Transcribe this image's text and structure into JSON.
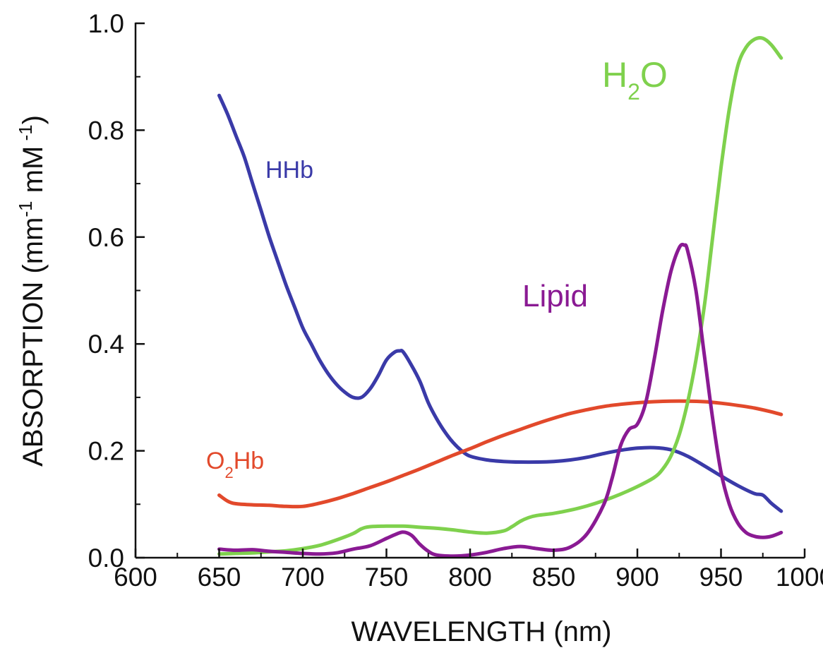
{
  "chart_data": {
    "type": "line",
    "xlabel": "WAVELENGTH (nm)",
    "ylabel": {
      "prefix": "ABSORPTION (mm",
      "sup1": "-1",
      "middle": " mM",
      "sup2": " -1",
      "suffix": ")"
    },
    "xlim": [
      600,
      1000
    ],
    "ylim": [
      0.0,
      1.0
    ],
    "xticks": [
      "600",
      "650",
      "700",
      "750",
      "800",
      "850",
      "900",
      "950",
      "1000"
    ],
    "yticks": [
      "0.0",
      "0.2",
      "0.4",
      "0.6",
      "0.8",
      "1.0"
    ],
    "grid": false,
    "series": [
      {
        "id": "hhb",
        "color": "#3a3aa8",
        "label": {
          "main": "HHb",
          "sub": "",
          "tail": ""
        },
        "x": [
          650,
          655,
          660,
          665,
          670,
          675,
          680,
          685,
          690,
          695,
          700,
          705,
          710,
          715,
          720,
          725,
          730,
          735,
          740,
          745,
          750,
          755,
          758,
          760,
          765,
          770,
          775,
          780,
          785,
          790,
          795,
          800,
          810,
          820,
          830,
          840,
          850,
          860,
          870,
          880,
          890,
          900,
          910,
          920,
          930,
          940,
          950,
          960,
          970,
          975,
          980,
          986
        ],
        "y": [
          0.865,
          0.83,
          0.79,
          0.75,
          0.7,
          0.65,
          0.6,
          0.555,
          0.51,
          0.47,
          0.43,
          0.4,
          0.37,
          0.345,
          0.325,
          0.31,
          0.3,
          0.3,
          0.315,
          0.34,
          0.37,
          0.385,
          0.387,
          0.385,
          0.36,
          0.33,
          0.29,
          0.26,
          0.235,
          0.215,
          0.2,
          0.19,
          0.183,
          0.18,
          0.179,
          0.179,
          0.18,
          0.183,
          0.188,
          0.195,
          0.201,
          0.205,
          0.206,
          0.202,
          0.19,
          0.172,
          0.153,
          0.135,
          0.12,
          0.117,
          0.102,
          0.087
        ]
      },
      {
        "id": "o2hb",
        "color": "#e2492b",
        "label": {
          "main": "O",
          "sub": "2",
          "tail": "Hb"
        },
        "x": [
          650,
          655,
          660,
          670,
          680,
          690,
          700,
          710,
          720,
          730,
          740,
          750,
          760,
          770,
          780,
          790,
          800,
          810,
          820,
          830,
          840,
          850,
          860,
          870,
          880,
          890,
          900,
          910,
          920,
          930,
          940,
          950,
          960,
          970,
          980,
          986
        ],
        "y": [
          0.117,
          0.106,
          0.101,
          0.099,
          0.098,
          0.096,
          0.096,
          0.102,
          0.11,
          0.12,
          0.131,
          0.142,
          0.154,
          0.166,
          0.179,
          0.192,
          0.204,
          0.217,
          0.229,
          0.24,
          0.251,
          0.261,
          0.27,
          0.277,
          0.283,
          0.287,
          0.29,
          0.292,
          0.293,
          0.293,
          0.292,
          0.289,
          0.285,
          0.28,
          0.273,
          0.268
        ]
      },
      {
        "id": "h2o",
        "color": "#7fd14d",
        "label": {
          "main": "H",
          "sub": "2",
          "tail": "O"
        },
        "x": [
          650,
          660,
          670,
          680,
          690,
          700,
          710,
          720,
          730,
          735,
          740,
          750,
          760,
          770,
          780,
          790,
          800,
          810,
          820,
          825,
          830,
          835,
          840,
          850,
          860,
          870,
          880,
          890,
          900,
          910,
          915,
          920,
          925,
          930,
          935,
          940,
          945,
          950,
          955,
          960,
          965,
          970,
          975,
          980,
          986
        ],
        "y": [
          0.007,
          0.008,
          0.009,
          0.011,
          0.013,
          0.017,
          0.023,
          0.033,
          0.045,
          0.054,
          0.058,
          0.059,
          0.059,
          0.057,
          0.055,
          0.052,
          0.048,
          0.046,
          0.05,
          0.058,
          0.068,
          0.075,
          0.079,
          0.083,
          0.089,
          0.097,
          0.107,
          0.119,
          0.133,
          0.15,
          0.165,
          0.19,
          0.23,
          0.29,
          0.37,
          0.47,
          0.6,
          0.73,
          0.84,
          0.92,
          0.955,
          0.97,
          0.972,
          0.96,
          0.935
        ]
      },
      {
        "id": "lipid",
        "color": "#8a1a93",
        "label": {
          "main": "Lipid",
          "sub": "",
          "tail": ""
        },
        "x": [
          650,
          660,
          670,
          680,
          690,
          700,
          710,
          720,
          730,
          740,
          750,
          755,
          760,
          765,
          770,
          775,
          780,
          790,
          800,
          810,
          820,
          830,
          840,
          850,
          860,
          870,
          880,
          885,
          890,
          895,
          900,
          905,
          910,
          915,
          920,
          925,
          928,
          930,
          935,
          940,
          945,
          950,
          955,
          960,
          965,
          970,
          975,
          980,
          986
        ],
        "y": [
          0.016,
          0.014,
          0.015,
          0.012,
          0.01,
          0.008,
          0.007,
          0.009,
          0.016,
          0.022,
          0.036,
          0.043,
          0.048,
          0.042,
          0.025,
          0.012,
          0.005,
          0.003,
          0.005,
          0.01,
          0.017,
          0.021,
          0.017,
          0.014,
          0.02,
          0.045,
          0.1,
          0.15,
          0.21,
          0.24,
          0.25,
          0.29,
          0.37,
          0.46,
          0.535,
          0.58,
          0.585,
          0.575,
          0.5,
          0.38,
          0.26,
          0.16,
          0.1,
          0.065,
          0.047,
          0.04,
          0.038,
          0.04,
          0.047
        ]
      }
    ]
  }
}
